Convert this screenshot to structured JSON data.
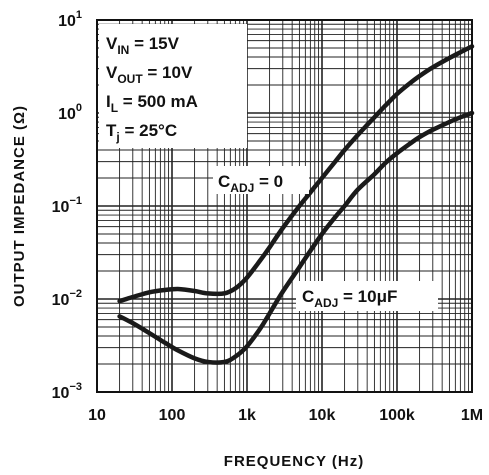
{
  "chart_data": {
    "type": "line",
    "xlabel": "FREQUENCY (Hz)",
    "ylabel": "OUTPUT IMPEDANCE (Ω)",
    "x_scale": "log",
    "y_scale": "log",
    "xlim": [
      10,
      1000000
    ],
    "ylim": [
      0.001,
      10
    ],
    "x_ticks": [
      {
        "value": 10,
        "label": "10"
      },
      {
        "value": 100,
        "label": "100"
      },
      {
        "value": 1000,
        "label": "1k"
      },
      {
        "value": 10000,
        "label": "10k"
      },
      {
        "value": 100000,
        "label": "100k"
      },
      {
        "value": 1000000,
        "label": "1M"
      }
    ],
    "y_ticks": [
      {
        "value": 0.001,
        "base": "10",
        "exp": "−3"
      },
      {
        "value": 0.01,
        "base": "10",
        "exp": "−2"
      },
      {
        "value": 0.1,
        "base": "10",
        "exp": "−1"
      },
      {
        "value": 1,
        "base": "10",
        "exp": "0"
      },
      {
        "value": 10,
        "base": "10",
        "exp": "1"
      }
    ],
    "grid": true,
    "conditions": [
      {
        "main": "V",
        "sub": "IN",
        "rest": " = 15V"
      },
      {
        "main": "V",
        "sub": "OUT",
        "rest": " = 10V"
      },
      {
        "main": "I",
        "sub": "L",
        "rest": " = 500 mA"
      },
      {
        "main": "T",
        "sub": "j",
        "rest": " = 25°C"
      }
    ],
    "series": [
      {
        "annotation": {
          "main": "C",
          "sub": "ADJ",
          "rest": " = 0"
        },
        "x": [
          20,
          30,
          50,
          80,
          120,
          200,
          300,
          500,
          700,
          1000,
          1500,
          2000,
          3000,
          5000,
          7000,
          10000,
          15000,
          20000,
          30000,
          50000,
          70000,
          100000,
          150000,
          200000,
          300000,
          500000,
          700000,
          1000000
        ],
        "y": [
          0.0095,
          0.0105,
          0.0118,
          0.0125,
          0.0128,
          0.0122,
          0.0115,
          0.0115,
          0.013,
          0.017,
          0.026,
          0.036,
          0.058,
          0.1,
          0.14,
          0.2,
          0.3,
          0.4,
          0.58,
          0.9,
          1.2,
          1.6,
          2.1,
          2.5,
          3.1,
          3.9,
          4.5,
          5.2
        ]
      },
      {
        "annotation": {
          "main": "C",
          "sub": "ADJ",
          "rest": " = 10μF"
        },
        "x": [
          20,
          30,
          50,
          80,
          120,
          200,
          300,
          500,
          700,
          1000,
          1500,
          2000,
          3000,
          5000,
          7000,
          10000,
          15000,
          20000,
          30000,
          50000,
          70000,
          100000,
          150000,
          200000,
          300000,
          500000,
          700000,
          1000000
        ],
        "y": [
          0.0065,
          0.0055,
          0.0043,
          0.0034,
          0.0028,
          0.0023,
          0.0021,
          0.0021,
          0.0024,
          0.0031,
          0.0048,
          0.007,
          0.012,
          0.022,
          0.033,
          0.05,
          0.076,
          0.1,
          0.15,
          0.22,
          0.29,
          0.37,
          0.47,
          0.55,
          0.66,
          0.8,
          0.9,
          1.0
        ]
      }
    ]
  }
}
